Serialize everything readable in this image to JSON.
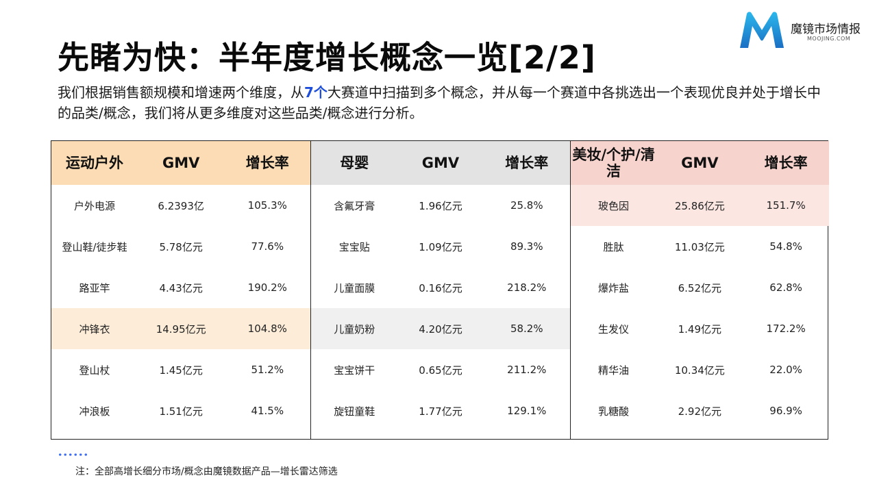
{
  "header": {
    "title": "先睹为快：半年度增长概念一览[2/2]",
    "intro_before": "我们根据销售额规模和增速两个维度，从",
    "intro_highlight": "7个",
    "intro_after": "大赛道中扫描到多个概念，并从每一个赛道中各挑选出一个表现优良并处于增长中的品类/概念，我们将从更多维度对这些品类/概念进行分析。"
  },
  "logo": {
    "brand": "魔镜市场情报",
    "sub": "MOOJING.COM",
    "accent": "#1fa3e0"
  },
  "sections": [
    {
      "headers": [
        "运动户外",
        "GMV",
        "增长率"
      ],
      "rows": [
        [
          "户外电源",
          "6.2393亿",
          "105.3%"
        ],
        [
          "登山鞋/徒步鞋",
          "5.78亿元",
          "77.6%"
        ],
        [
          "路亚竿",
          "4.43亿元",
          "190.2%"
        ],
        [
          "冲锋衣",
          "14.95亿元",
          "104.8%"
        ],
        [
          "登山杖",
          "1.45亿元",
          "51.2%"
        ],
        [
          "冲浪板",
          "1.51亿元",
          "41.5%"
        ]
      ]
    },
    {
      "headers": [
        "母婴",
        "GMV",
        "增长率"
      ],
      "rows": [
        [
          "含氟牙膏",
          "1.96亿元",
          "25.8%"
        ],
        [
          "宝宝贴",
          "1.09亿元",
          "89.3%"
        ],
        [
          "儿童面膜",
          "0.16亿元",
          "218.2%"
        ],
        [
          "儿童奶粉",
          "4.20亿元",
          "58.2%"
        ],
        [
          "宝宝饼干",
          "0.65亿元",
          "211.2%"
        ],
        [
          "旋钮童鞋",
          "1.77亿元",
          "129.1%"
        ]
      ]
    },
    {
      "headers": [
        "美妆/个护/清洁",
        "GMV",
        "增长率"
      ],
      "rows": [
        [
          "玻色因",
          "25.86亿元",
          "151.7%"
        ],
        [
          "胜肽",
          "11.03亿元",
          "54.8%"
        ],
        [
          "爆炸盐",
          "6.52亿元",
          "62.8%"
        ],
        [
          "生发仪",
          "1.49亿元",
          "172.2%"
        ],
        [
          "精华油",
          "10.34亿元",
          "22.0%"
        ],
        [
          "乳糖酸",
          "2.92亿元",
          "96.9%"
        ]
      ]
    }
  ],
  "footnote": "注：全部高增长细分市场/概念由魔镜数据产品—增长雷达筛选"
}
